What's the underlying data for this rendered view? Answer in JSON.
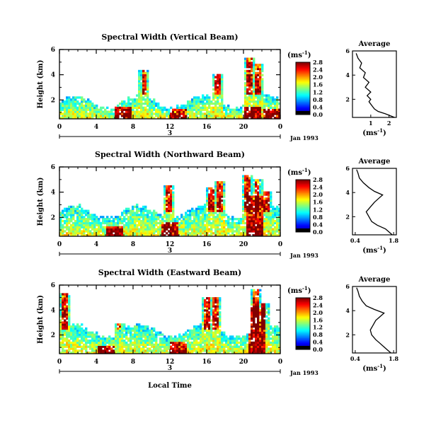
{
  "figure": {
    "x_axis_title": "Local Time",
    "colorbar_unit": "(ms",
    "colorbar_unit_sup": "-1",
    "colorbar_unit_close": ")",
    "date_label": "Jan 1993",
    "day_label": "3",
    "profile_title": "Average",
    "profile_xlabel": "(ms",
    "profile_xlabel_sup": "-1",
    "profile_xlabel_close": ")",
    "y_axis_label": "Height (km)"
  },
  "chart_data": [
    {
      "type": "heatmap",
      "title": "Spectral Width (Vertical Beam)",
      "ylabel": "Height (km)",
      "xlabel": "Local Time",
      "x_ticks": [
        "0",
        "4",
        "8",
        "12",
        "16",
        "20",
        "0"
      ],
      "y_ticks": [
        "2",
        "4",
        "6"
      ],
      "xlim": [
        0,
        24
      ],
      "ylim": [
        0.5,
        6
      ],
      "colorbar": {
        "unit": "ms-1",
        "ticks": [
          "0.0",
          "0.4",
          "0.8",
          "1.2",
          "1.6",
          "2.0",
          "2.4",
          "2.8"
        ],
        "range": [
          0,
          2.8
        ]
      },
      "profile": {
        "title": "Average",
        "x_ticks": [
          "1",
          "2"
        ],
        "y_ticks": [
          "2",
          "4",
          "6"
        ],
        "xlim": [
          0,
          2.4
        ],
        "heights": [
          0.5,
          0.8,
          1.0,
          1.2,
          1.4,
          1.6,
          1.8,
          2.0,
          2.3,
          2.6,
          3.0,
          3.4,
          3.8,
          4.2,
          4.6,
          5.0,
          5.4,
          5.8
        ],
        "values": [
          2.3,
          1.8,
          1.4,
          1.2,
          1.1,
          1.0,
          0.9,
          1.0,
          0.8,
          1.0,
          0.7,
          0.9,
          0.6,
          0.7,
          0.4,
          0.5,
          0.3,
          0.2
        ]
      }
    },
    {
      "type": "heatmap",
      "title": "Spectral Width (Northward Beam)",
      "ylabel": "Height (km)",
      "xlabel": "Local Time",
      "x_ticks": [
        "0",
        "4",
        "8",
        "12",
        "16",
        "20",
        "0"
      ],
      "y_ticks": [
        "2",
        "4",
        "6"
      ],
      "xlim": [
        0,
        24
      ],
      "ylim": [
        0.5,
        6
      ],
      "colorbar": {
        "unit": "ms-1",
        "ticks": [
          "0.0",
          "0.4",
          "0.8",
          "1.2",
          "1.6",
          "2.0",
          "2.4",
          "2.8"
        ],
        "range": [
          0,
          2.8
        ]
      },
      "profile": {
        "title": "Average",
        "x_ticks": [
          "0.4",
          "1.8"
        ],
        "y_ticks": [
          "2",
          "4",
          "6"
        ],
        "xlim": [
          0.3,
          1.9
        ],
        "heights": [
          0.5,
          0.8,
          1.0,
          1.3,
          1.6,
          2.0,
          2.4,
          2.8,
          3.2,
          3.5,
          3.8,
          4.1,
          4.4,
          4.8,
          5.2,
          5.6,
          5.9
        ],
        "values": [
          1.75,
          1.6,
          1.5,
          1.2,
          1.0,
          0.9,
          0.8,
          0.95,
          1.1,
          1.25,
          1.4,
          1.1,
          0.9,
          0.7,
          0.55,
          0.5,
          0.45
        ]
      }
    },
    {
      "type": "heatmap",
      "title": "Spectral Width (Eastward Beam)",
      "ylabel": "Height (km)",
      "xlabel": "Local Time",
      "x_ticks": [
        "0",
        "4",
        "8",
        "12",
        "16",
        "20",
        "0"
      ],
      "y_ticks": [
        "2",
        "4",
        "6"
      ],
      "xlim": [
        0,
        24
      ],
      "ylim": [
        0.5,
        6
      ],
      "colorbar": {
        "unit": "ms-1",
        "ticks": [
          "0.0",
          "0.4",
          "0.8",
          "1.2",
          "1.6",
          "2.0",
          "2.4",
          "2.8"
        ],
        "range": [
          0,
          2.8
        ]
      },
      "profile": {
        "title": "Average",
        "x_ticks": [
          "0.4",
          "1.8"
        ],
        "y_ticks": [
          "2",
          "4",
          "6"
        ],
        "xlim": [
          0.3,
          1.9
        ],
        "heights": [
          0.5,
          0.8,
          1.0,
          1.3,
          1.6,
          2.0,
          2.4,
          2.8,
          3.2,
          3.5,
          3.8,
          4.1,
          4.4,
          4.8,
          5.2,
          5.6,
          5.9
        ],
        "values": [
          1.7,
          1.55,
          1.45,
          1.3,
          1.15,
          1.0,
          0.95,
          1.05,
          1.15,
          1.3,
          1.45,
          1.1,
          0.8,
          0.65,
          0.55,
          0.5,
          0.45
        ]
      }
    }
  ]
}
